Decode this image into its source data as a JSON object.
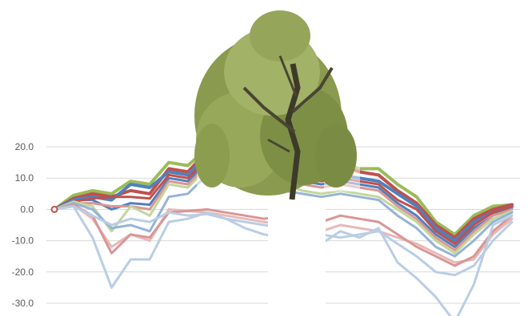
{
  "chart_data": {
    "type": "line",
    "ylim": [
      -30,
      20
    ],
    "y_ticks": [
      "20.0",
      "10.0",
      "0.0",
      "-10.0",
      "-20.0",
      "-30.0"
    ],
    "y_tick_values": [
      20,
      10,
      0,
      -10,
      -20,
      -30
    ],
    "grid": true,
    "legend": "none",
    "x": [
      0,
      1,
      2,
      3,
      4,
      5,
      6,
      7,
      8,
      9,
      10,
      11,
      12,
      13,
      14,
      15,
      16,
      17,
      18,
      19,
      20,
      21,
      22,
      23,
      24
    ],
    "series": [
      {
        "color": "#9bbb59",
        "width": 4,
        "values": [
          0,
          4.5,
          6,
          5,
          9,
          8,
          15,
          14,
          19.5,
          19,
          17,
          16,
          16,
          15,
          14,
          15,
          13,
          13,
          8,
          4,
          -4,
          -8,
          -2,
          1,
          1.5
        ]
      },
      {
        "color": "#c0504d",
        "width": 4,
        "values": [
          0,
          3.5,
          5,
          4,
          6,
          5,
          13,
          12,
          18.5,
          17,
          15,
          15,
          15,
          14,
          12,
          14,
          12,
          11,
          6,
          2,
          -5,
          -9,
          -3,
          0,
          1.5
        ]
      },
      {
        "color": "#4f81bd",
        "width": 4,
        "values": [
          0,
          3,
          4,
          3,
          8,
          7,
          12,
          11,
          17,
          15.5,
          14,
          13,
          13,
          11,
          10,
          11,
          10,
          9,
          5,
          1,
          -6,
          -10,
          -4,
          -1,
          1
        ]
      },
      {
        "color": "#4f81bd",
        "width": 3,
        "values": [
          0,
          3,
          3,
          0,
          2,
          1.5,
          10,
          9,
          15,
          13,
          11,
          10,
          11,
          9,
          8,
          9,
          8,
          7,
          2,
          -2,
          -8,
          -12,
          -6,
          -2,
          0.5
        ]
      },
      {
        "color": "#c0504d",
        "width": 3,
        "values": [
          0,
          2.5,
          3.5,
          4,
          4,
          3.5,
          11,
          10,
          16,
          14,
          12,
          11,
          11,
          10,
          9,
          10,
          9,
          8,
          3,
          0,
          -7,
          -11,
          -5,
          -1,
          1
        ]
      },
      {
        "color": "#d99694",
        "width": 3,
        "values": [
          0,
          2,
          2,
          1,
          1,
          0,
          9,
          8,
          14,
          12,
          10,
          9,
          9,
          8,
          7,
          8,
          7,
          6,
          1,
          -3,
          -9,
          -13,
          -7,
          -2,
          0
        ]
      },
      {
        "color": "#c3d69b",
        "width": 3,
        "values": [
          0,
          2.5,
          1,
          -7,
          1,
          -2,
          8,
          7,
          13,
          11,
          9,
          8,
          8,
          6,
          5,
          6,
          5,
          4,
          0,
          -4,
          -10,
          -14,
          -8,
          -3,
          -0.5
        ]
      },
      {
        "color": "#95b3d7",
        "width": 3,
        "values": [
          0,
          2,
          0,
          -6,
          -5,
          -7,
          4,
          5,
          11,
          9,
          7,
          6,
          6,
          5,
          4,
          5,
          4,
          3,
          -2,
          -6,
          -12,
          -15,
          -10,
          -4,
          -1
        ]
      },
      {
        "color": "#e6b9b8",
        "width": 3,
        "values": [
          0,
          1.5,
          -3,
          -12,
          -8,
          -10,
          0,
          -0.5,
          -1,
          -2,
          -3,
          -4,
          -5,
          -6,
          -7,
          -5,
          -6,
          -7,
          -9,
          -11,
          -14,
          -17,
          -16,
          -8,
          -3
        ]
      },
      {
        "color": "#d99694",
        "width": 3,
        "values": [
          0,
          1.5,
          -2,
          -14,
          -8,
          -9,
          -1,
          -0.5,
          0,
          -1,
          -2,
          -3,
          -2,
          -3,
          -4,
          -2,
          -3,
          -4,
          -8,
          -12,
          -15,
          -18,
          -15,
          -7,
          -2
        ]
      },
      {
        "color": "#b9cde5",
        "width": 3,
        "values": [
          0,
          1,
          -9,
          -25,
          -16,
          -16,
          -4,
          -3,
          -1,
          -3,
          -4,
          -5,
          -6,
          -7,
          -8,
          -9,
          -8,
          -7,
          -11,
          -15,
          -20,
          -21,
          -18,
          -10,
          -4
        ]
      },
      {
        "color": "#b9cde5",
        "width": 3,
        "values": [
          0,
          1,
          -2,
          -5,
          -3,
          -4,
          -1,
          -2,
          -1.5,
          -3,
          -6,
          -8,
          -9,
          -10,
          -11,
          -7,
          -9,
          -6,
          -17,
          -22,
          -28,
          -36,
          -24,
          -5,
          -2
        ]
      }
    ]
  }
}
